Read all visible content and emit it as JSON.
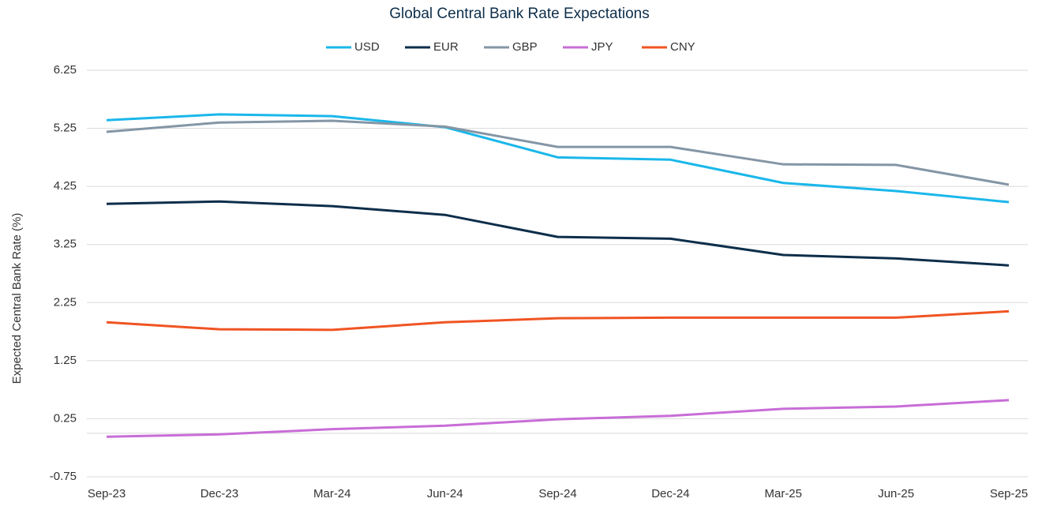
{
  "chart_data": {
    "type": "line",
    "title": "Global Central Bank Rate Expectations",
    "y_label": "Expected Central Bank Rate (%)",
    "categories": [
      "Sep-23",
      "Dec-23",
      "Mar-24",
      "Jun-24",
      "Sep-24",
      "Dec-24",
      "Mar-25",
      "Jun-25",
      "Sep-25"
    ],
    "series": [
      {
        "name": "USD",
        "color": "#1ab7ea",
        "values": [
          5.39,
          5.49,
          5.46,
          5.27,
          4.75,
          4.71,
          4.31,
          4.17,
          3.98
        ]
      },
      {
        "name": "EUR",
        "color": "#0d2e4a",
        "values": [
          3.95,
          3.99,
          3.91,
          3.76,
          3.38,
          3.35,
          3.07,
          3.01,
          2.89
        ]
      },
      {
        "name": "GBP",
        "color": "#8496a5",
        "values": [
          5.19,
          5.35,
          5.38,
          5.28,
          4.93,
          4.93,
          4.63,
          4.62,
          4.28
        ]
      },
      {
        "name": "JPY",
        "color": "#c86dd7",
        "values": [
          -0.06,
          -0.02,
          0.07,
          0.13,
          0.24,
          0.3,
          0.42,
          0.46,
          0.57
        ]
      },
      {
        "name": "CNY",
        "color": "#f05423",
        "values": [
          1.91,
          1.79,
          1.78,
          1.91,
          1.98,
          1.99,
          1.99,
          1.99,
          2.1
        ]
      }
    ],
    "ylim": [
      -0.75,
      6.25
    ],
    "yticks": [
      -0.75,
      0.25,
      1.25,
      2.25,
      3.25,
      4.25,
      5.25,
      6.25
    ],
    "grid": true,
    "legend": "top"
  }
}
